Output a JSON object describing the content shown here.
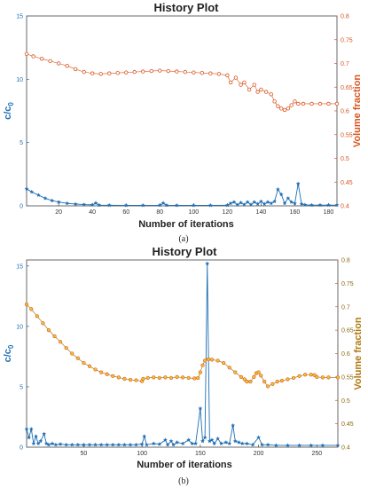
{
  "colors": {
    "left_axis": "#1f6fb5",
    "right_axis": "#d9541e",
    "series_a_right": "#d9541e",
    "series_b_right_stroke": "#8a6a10",
    "series_b_right_fill": "#f1c232",
    "series_b_right_edge": "#d9541e",
    "left_series": "#1f6fb5"
  },
  "chart_data": [
    {
      "panel": "a",
      "type": "line",
      "title": "History Plot",
      "xlabel": "Number of iterations",
      "ylabel_left": "c/c",
      "ylabel_left_subscript": "0",
      "ylabel_right": "Volume fraction",
      "caption": "(a)",
      "xlim": [
        1,
        185
      ],
      "xticks": [
        20,
        40,
        60,
        80,
        100,
        120,
        140,
        160,
        180
      ],
      "ylim_left": [
        0,
        15
      ],
      "yticks_left": [
        0,
        5,
        10,
        15
      ],
      "ylim_right": [
        0.4,
        0.8
      ],
      "yticks_right": [
        0.4,
        0.45,
        0.5,
        0.55,
        0.6,
        0.65,
        0.7,
        0.75,
        0.8
      ],
      "grid": false,
      "series": [
        {
          "axis": "left",
          "marker": "star",
          "points": [
            [
              1,
              1.35
            ],
            [
              4,
              1.1
            ],
            [
              8,
              0.85
            ],
            [
              12,
              0.6
            ],
            [
              16,
              0.42
            ],
            [
              20,
              0.3
            ],
            [
              25,
              0.2
            ],
            [
              30,
              0.14
            ],
            [
              35,
              0.1
            ],
            [
              40,
              0.08
            ],
            [
              42,
              0.22
            ],
            [
              44,
              0.06
            ],
            [
              50,
              0.05
            ],
            [
              60,
              0.04
            ],
            [
              70,
              0.04
            ],
            [
              80,
              0.05
            ],
            [
              82,
              0.22
            ],
            [
              84,
              0.05
            ],
            [
              90,
              0.04
            ],
            [
              100,
              0.04
            ],
            [
              110,
              0.04
            ],
            [
              120,
              0.05
            ],
            [
              122,
              0.2
            ],
            [
              124,
              0.3
            ],
            [
              126,
              0.08
            ],
            [
              128,
              0.25
            ],
            [
              130,
              0.1
            ],
            [
              132,
              0.3
            ],
            [
              134,
              0.1
            ],
            [
              136,
              0.3
            ],
            [
              138,
              0.15
            ],
            [
              140,
              0.35
            ],
            [
              142,
              0.15
            ],
            [
              144,
              0.3
            ],
            [
              146,
              0.2
            ],
            [
              148,
              0.35
            ],
            [
              150,
              1.3
            ],
            [
              152,
              0.9
            ],
            [
              154,
              0.2
            ],
            [
              156,
              0.6
            ],
            [
              158,
              0.3
            ],
            [
              160,
              0.2
            ],
            [
              162,
              1.75
            ],
            [
              164,
              0.15
            ],
            [
              166,
              0.08
            ],
            [
              170,
              0.06
            ],
            [
              175,
              0.06
            ],
            [
              180,
              0.06
            ],
            [
              185,
              0.06
            ]
          ]
        },
        {
          "axis": "right",
          "marker": "circle",
          "points": [
            [
              1,
              0.72
            ],
            [
              5,
              0.715
            ],
            [
              10,
              0.71
            ],
            [
              15,
              0.705
            ],
            [
              20,
              0.7
            ],
            [
              25,
              0.695
            ],
            [
              30,
              0.688
            ],
            [
              35,
              0.682
            ],
            [
              40,
              0.679
            ],
            [
              45,
              0.678
            ],
            [
              50,
              0.679
            ],
            [
              55,
              0.68
            ],
            [
              60,
              0.681
            ],
            [
              65,
              0.682
            ],
            [
              70,
              0.683
            ],
            [
              75,
              0.684
            ],
            [
              80,
              0.685
            ],
            [
              85,
              0.684
            ],
            [
              90,
              0.683
            ],
            [
              95,
              0.682
            ],
            [
              100,
              0.681
            ],
            [
              105,
              0.68
            ],
            [
              110,
              0.679
            ],
            [
              115,
              0.678
            ],
            [
              120,
              0.675
            ],
            [
              122,
              0.66
            ],
            [
              125,
              0.67
            ],
            [
              128,
              0.655
            ],
            [
              130,
              0.66
            ],
            [
              133,
              0.645
            ],
            [
              136,
              0.655
            ],
            [
              138,
              0.64
            ],
            [
              140,
              0.645
            ],
            [
              143,
              0.64
            ],
            [
              146,
              0.635
            ],
            [
              148,
              0.62
            ],
            [
              150,
              0.61
            ],
            [
              152,
              0.605
            ],
            [
              154,
              0.602
            ],
            [
              156,
              0.605
            ],
            [
              158,
              0.612
            ],
            [
              160,
              0.62
            ],
            [
              162,
              0.615
            ],
            [
              165,
              0.615
            ],
            [
              170,
              0.615
            ],
            [
              175,
              0.615
            ],
            [
              180,
              0.615
            ],
            [
              185,
              0.615
            ]
          ]
        }
      ]
    },
    {
      "panel": "b",
      "type": "line",
      "title": "History Plot",
      "xlabel": "Number of iterations",
      "ylabel_left": "c/c",
      "ylabel_left_subscript": "0",
      "ylabel_right": "Volume fraction",
      "caption": "(b)",
      "xlim": [
        1,
        268
      ],
      "xticks": [
        50,
        100,
        150,
        200,
        250
      ],
      "ylim_left": [
        0,
        15.5
      ],
      "yticks_left": [
        0,
        5,
        10,
        15
      ],
      "ylim_right": [
        0.4,
        0.8
      ],
      "yticks_right": [
        0.4,
        0.45,
        0.5,
        0.55,
        0.6,
        0.65,
        0.7,
        0.75,
        0.8
      ],
      "grid": false,
      "series": [
        {
          "axis": "left",
          "marker": "star",
          "points": [
            [
              1,
              1.5
            ],
            [
              3,
              0.8
            ],
            [
              5,
              1.5
            ],
            [
              7,
              0.3
            ],
            [
              9,
              0.9
            ],
            [
              11,
              0.3
            ],
            [
              13,
              0.5
            ],
            [
              16,
              1.1
            ],
            [
              18,
              0.3
            ],
            [
              20,
              0.2
            ],
            [
              23,
              0.3
            ],
            [
              26,
              0.2
            ],
            [
              30,
              0.25
            ],
            [
              35,
              0.2
            ],
            [
              40,
              0.2
            ],
            [
              45,
              0.2
            ],
            [
              50,
              0.2
            ],
            [
              55,
              0.2
            ],
            [
              60,
              0.2
            ],
            [
              65,
              0.2
            ],
            [
              70,
              0.2
            ],
            [
              75,
              0.2
            ],
            [
              80,
              0.2
            ],
            [
              85,
              0.2
            ],
            [
              90,
              0.2
            ],
            [
              95,
              0.2
            ],
            [
              100,
              0.25
            ],
            [
              102,
              0.9
            ],
            [
              104,
              0.2
            ],
            [
              110,
              0.3
            ],
            [
              115,
              0.25
            ],
            [
              120,
              0.6
            ],
            [
              122,
              0.2
            ],
            [
              125,
              0.5
            ],
            [
              127,
              0.2
            ],
            [
              130,
              0.4
            ],
            [
              135,
              0.3
            ],
            [
              140,
              0.6
            ],
            [
              143,
              0.3
            ],
            [
              146,
              0.3
            ],
            [
              150,
              3.2
            ],
            [
              152,
              0.5
            ],
            [
              154,
              0.8
            ],
            [
              156,
              15.2
            ],
            [
              158,
              0.5
            ],
            [
              160,
              0.6
            ],
            [
              162,
              0.3
            ],
            [
              165,
              0.7
            ],
            [
              168,
              0.3
            ],
            [
              172,
              0.4
            ],
            [
              175,
              0.3
            ],
            [
              178,
              1.8
            ],
            [
              180,
              0.5
            ],
            [
              183,
              0.4
            ],
            [
              186,
              0.3
            ],
            [
              190,
              0.3
            ],
            [
              195,
              0.2
            ],
            [
              200,
              0.8
            ],
            [
              203,
              0.2
            ],
            [
              208,
              0.2
            ],
            [
              215,
              0.15
            ],
            [
              225,
              0.15
            ],
            [
              235,
              0.15
            ],
            [
              245,
              0.15
            ],
            [
              255,
              0.15
            ],
            [
              268,
              0.15
            ]
          ]
        },
        {
          "axis": "right",
          "marker": "circle",
          "points": [
            [
              1,
              0.705
            ],
            [
              5,
              0.695
            ],
            [
              10,
              0.68
            ],
            [
              15,
              0.665
            ],
            [
              20,
              0.65
            ],
            [
              25,
              0.637
            ],
            [
              30,
              0.625
            ],
            [
              35,
              0.612
            ],
            [
              40,
              0.6
            ],
            [
              45,
              0.59
            ],
            [
              50,
              0.58
            ],
            [
              55,
              0.573
            ],
            [
              60,
              0.566
            ],
            [
              65,
              0.56
            ],
            [
              70,
              0.556
            ],
            [
              75,
              0.552
            ],
            [
              80,
              0.549
            ],
            [
              85,
              0.546
            ],
            [
              90,
              0.544
            ],
            [
              95,
              0.543
            ],
            [
              100,
              0.541
            ],
            [
              101,
              0.546
            ],
            [
              105,
              0.548
            ],
            [
              110,
              0.549
            ],
            [
              115,
              0.548
            ],
            [
              120,
              0.549
            ],
            [
              125,
              0.548
            ],
            [
              130,
              0.55
            ],
            [
              135,
              0.549
            ],
            [
              140,
              0.548
            ],
            [
              145,
              0.547
            ],
            [
              148,
              0.548
            ],
            [
              150,
              0.56
            ],
            [
              152,
              0.575
            ],
            [
              154,
              0.585
            ],
            [
              157,
              0.588
            ],
            [
              160,
              0.587
            ],
            [
              165,
              0.585
            ],
            [
              170,
              0.58
            ],
            [
              175,
              0.57
            ],
            [
              180,
              0.56
            ],
            [
              185,
              0.55
            ],
            [
              188,
              0.545
            ],
            [
              190,
              0.54
            ],
            [
              193,
              0.54
            ],
            [
              196,
              0.55
            ],
            [
              198,
              0.558
            ],
            [
              200,
              0.56
            ],
            [
              202,
              0.553
            ],
            [
              205,
              0.54
            ],
            [
              208,
              0.53
            ],
            [
              212,
              0.535
            ],
            [
              216,
              0.54
            ],
            [
              220,
              0.542
            ],
            [
              225,
              0.545
            ],
            [
              230,
              0.548
            ],
            [
              235,
              0.552
            ],
            [
              240,
              0.555
            ],
            [
              245,
              0.555
            ],
            [
              248,
              0.554
            ],
            [
              250,
              0.55
            ],
            [
              255,
              0.549
            ],
            [
              260,
              0.549
            ],
            [
              268,
              0.549
            ]
          ]
        }
      ]
    }
  ]
}
